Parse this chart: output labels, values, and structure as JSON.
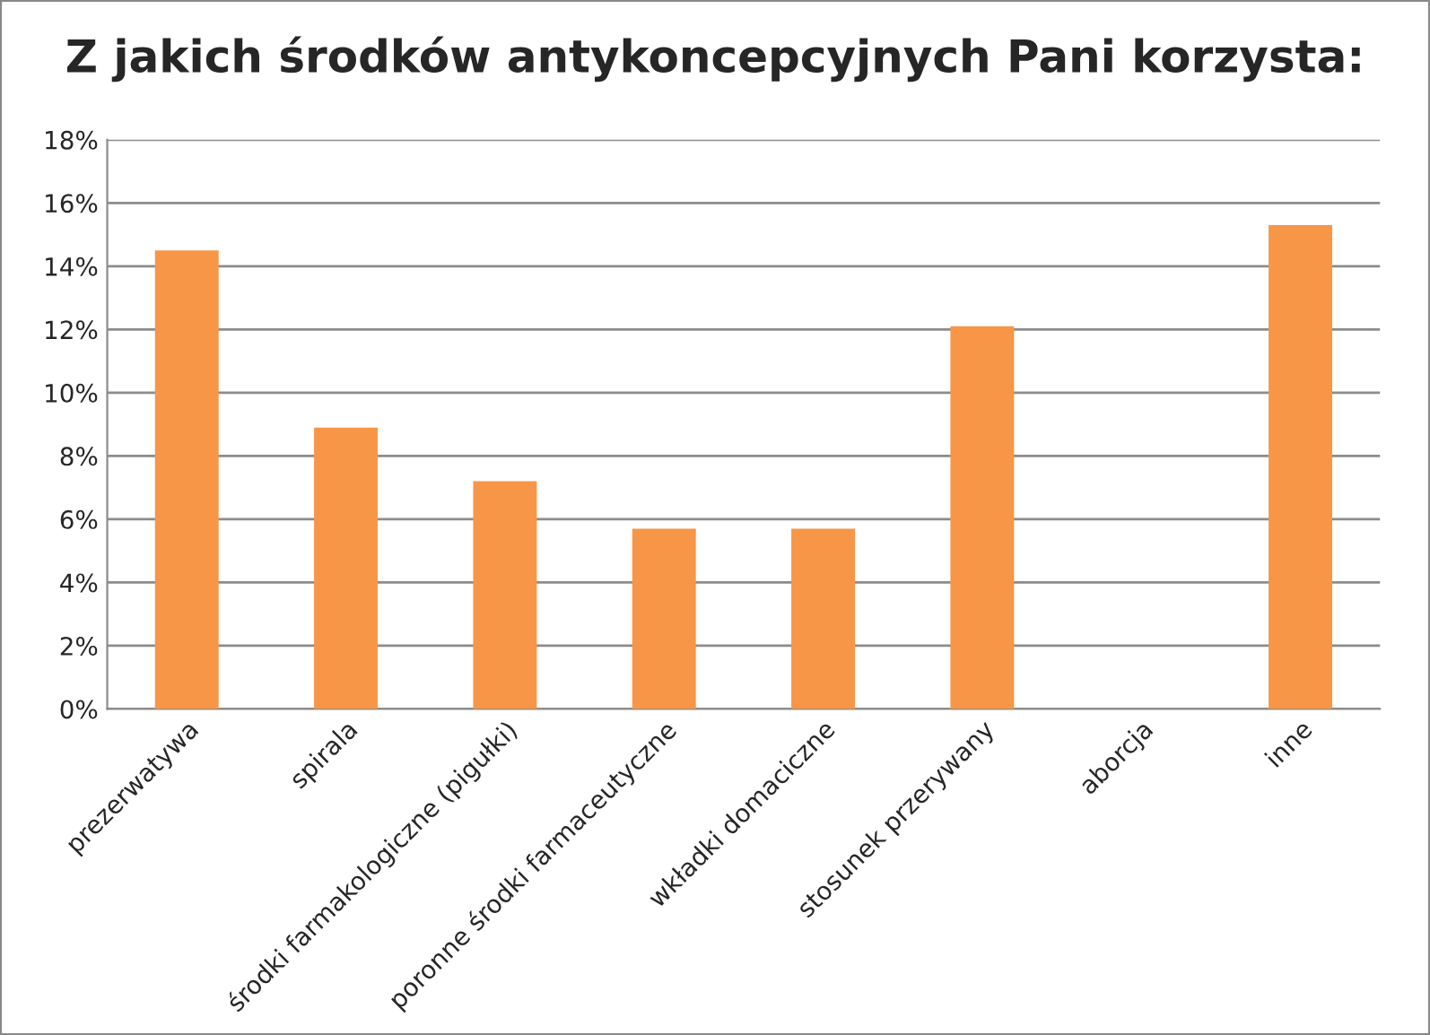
{
  "chart_data": {
    "type": "bar",
    "title": "Z jakich środków antykoncepcyjnych Pani korzysta:",
    "categories": [
      "prezerwatywa",
      "spirala",
      "środki farmakologiczne (pigułki)",
      "poronne środki farmaceutyczne",
      "wkładki domaciczne",
      "stosunek przerywany",
      "aborcja",
      "inne"
    ],
    "values": [
      14.5,
      8.9,
      7.2,
      5.7,
      5.7,
      12.1,
      0,
      15.3
    ],
    "color": "#f79646",
    "ylim": [
      0,
      18
    ],
    "yticks": [
      {
        "value": 0,
        "label": "0%"
      },
      {
        "value": 2,
        "label": "2%"
      },
      {
        "value": 4,
        "label": "4%"
      },
      {
        "value": 6,
        "label": "6%"
      },
      {
        "value": 8,
        "label": "8%"
      },
      {
        "value": 10,
        "label": "10%"
      },
      {
        "value": 12,
        "label": "12%"
      },
      {
        "value": 14,
        "label": "14%"
      },
      {
        "value": 16,
        "label": "16%"
      },
      {
        "value": 18,
        "label": "18%"
      }
    ],
    "grid": "y",
    "legend": false
  }
}
